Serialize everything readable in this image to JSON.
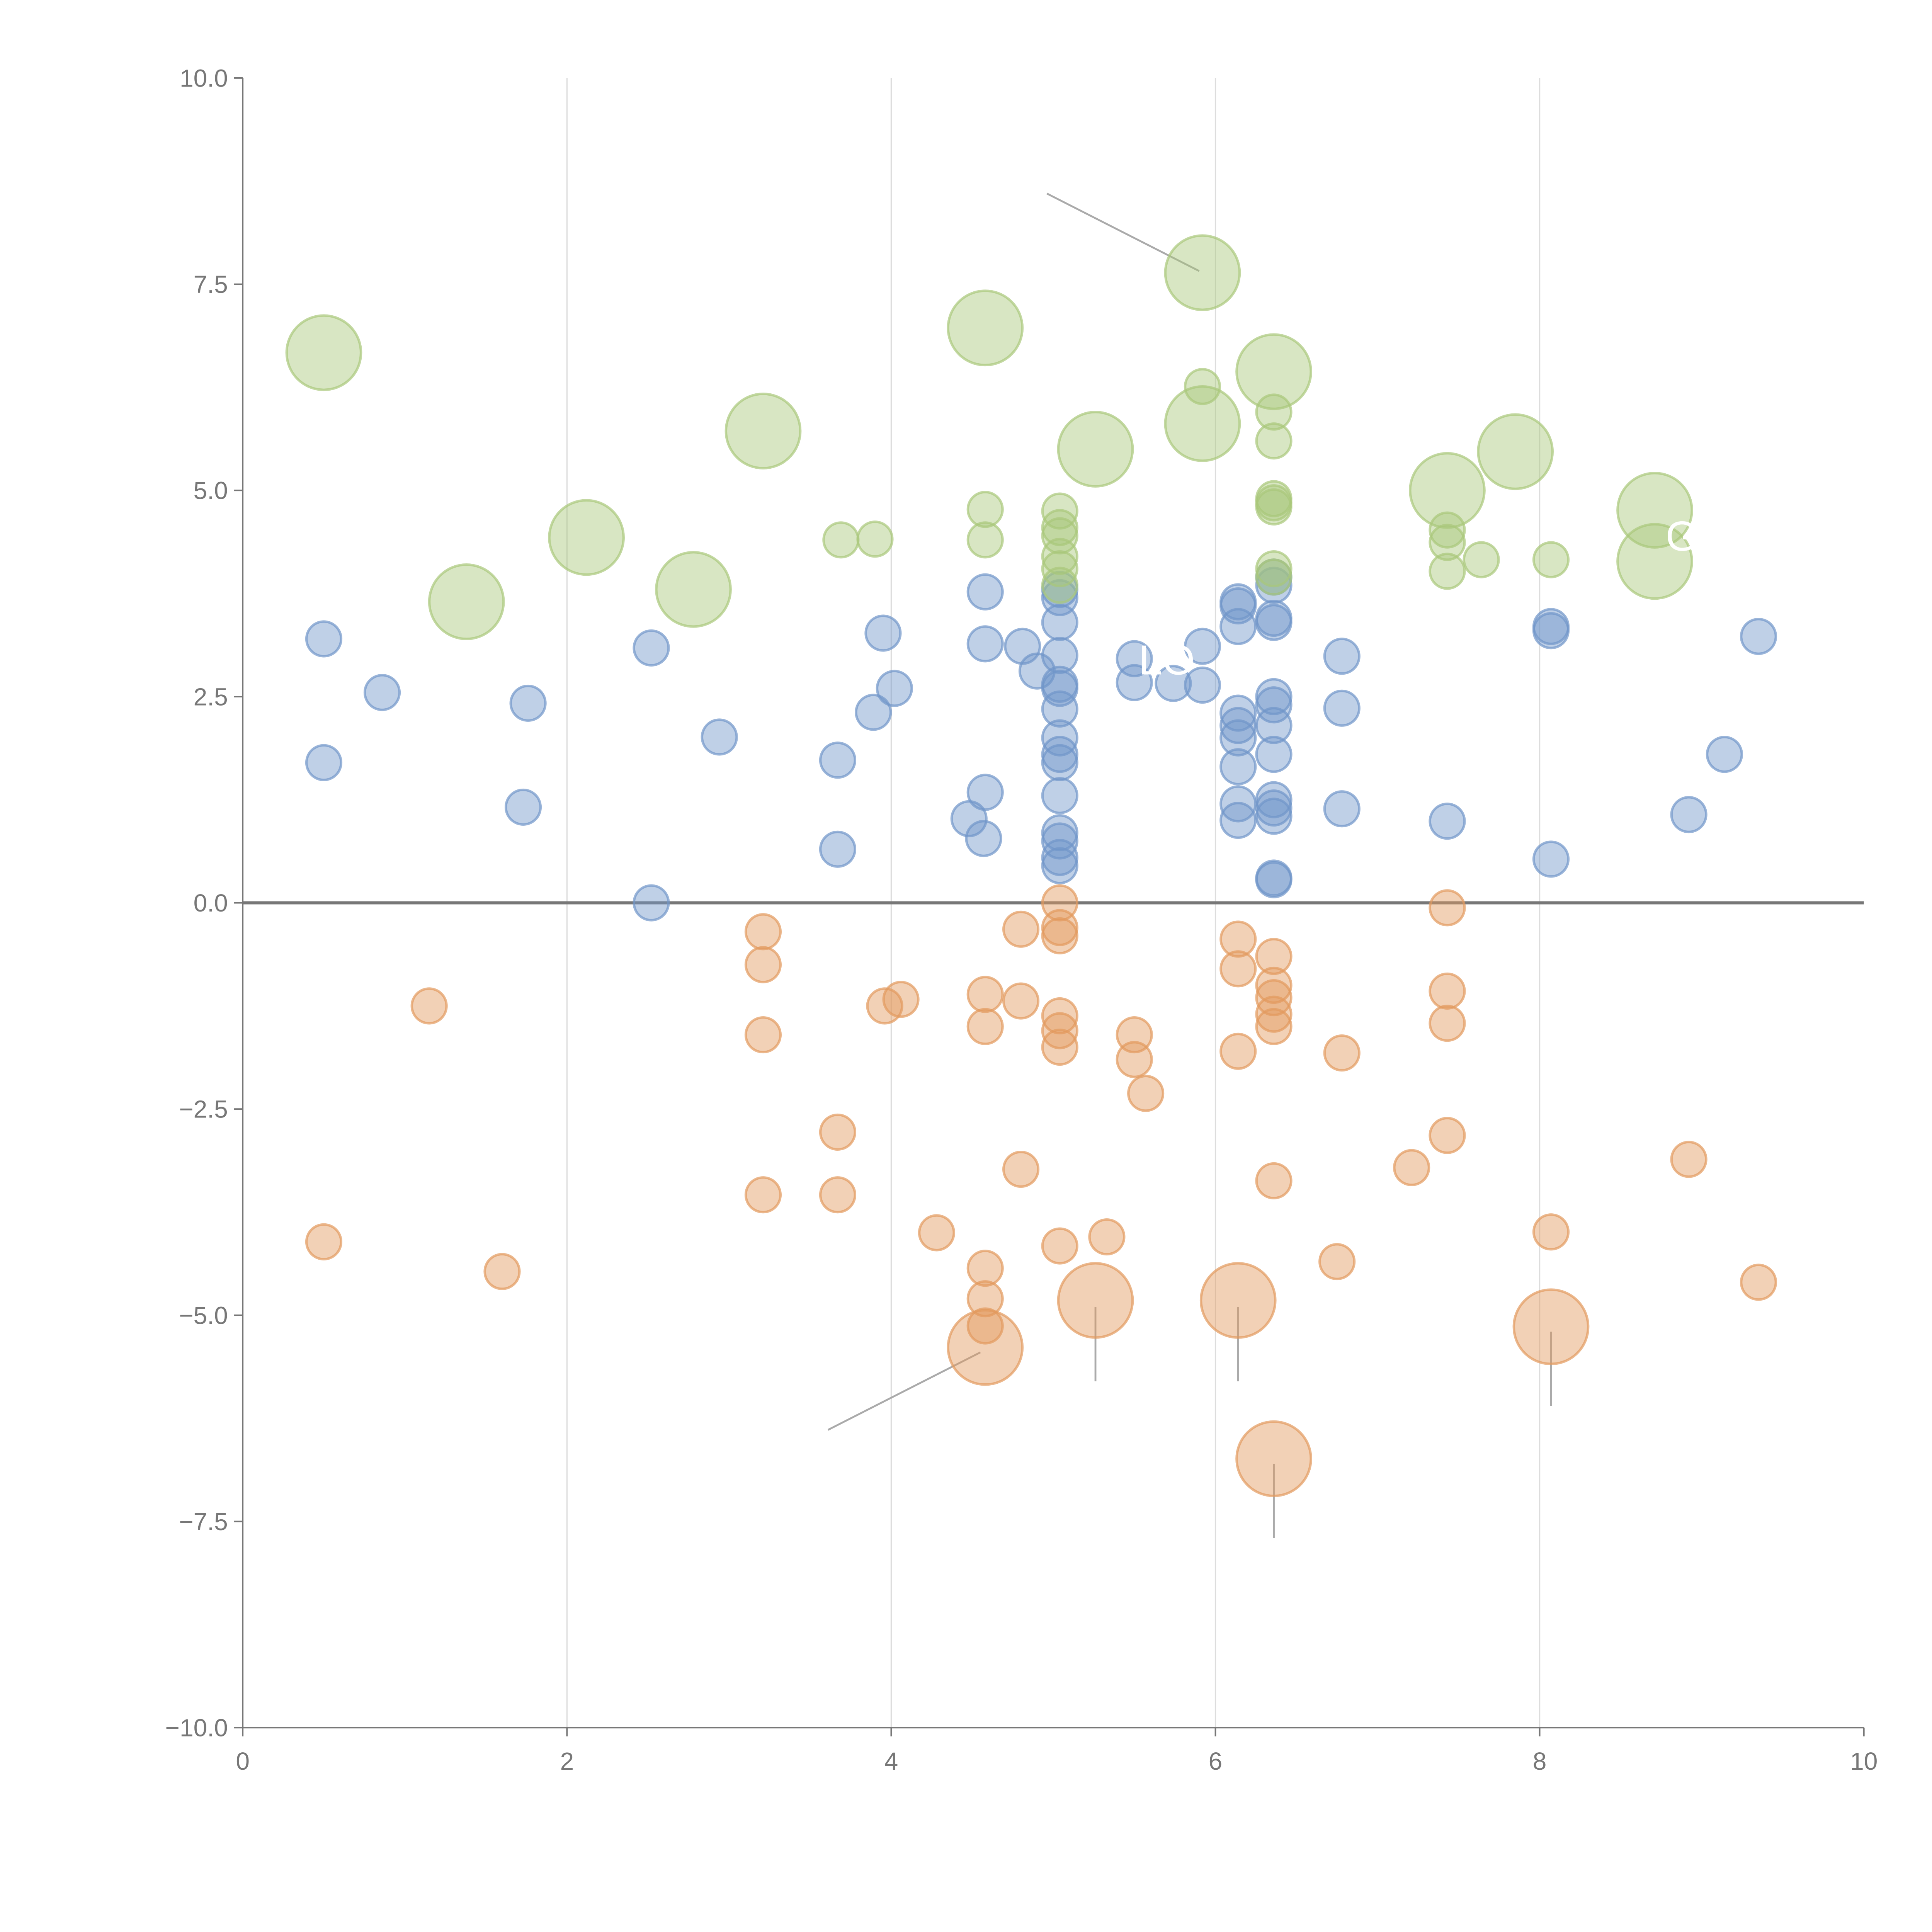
{
  "chart_data": {
    "type": "scatter",
    "title": "",
    "xlabel": "",
    "ylabel": "",
    "xlim": [
      0,
      10
    ],
    "ylim": [
      -10,
      10
    ],
    "grid": "vertical",
    "x_ticks": [
      "0",
      "2",
      "4",
      "6",
      "8",
      "10"
    ],
    "y_ticks": [
      "10.0",
      "7.5",
      "5.0",
      "2.5",
      "0.0",
      "−2.5",
      "−5.0",
      "−7.5",
      "−10.0"
    ],
    "series": [
      {
        "name": "blue",
        "color": "#7196c9",
        "points": [
          [
            0.5,
            3.2,
            1
          ],
          [
            0.5,
            1.7,
            1
          ],
          [
            0.86,
            2.55,
            1
          ],
          [
            1.73,
            1.16,
            1
          ],
          [
            1.76,
            2.42,
            1
          ],
          [
            2.52,
            3.09,
            1
          ],
          [
            2.52,
            0,
            1
          ],
          [
            2.94,
            2.01,
            1
          ],
          [
            3.67,
            1.73,
            1
          ],
          [
            3.67,
            0.65,
            1
          ],
          [
            3.89,
            2.31,
            1
          ],
          [
            3.95,
            3.27,
            1
          ],
          [
            4.02,
            2.6,
            1
          ],
          [
            4.48,
            1.02,
            1
          ],
          [
            4.58,
            3.77,
            1
          ],
          [
            4.58,
            3.14,
            1
          ],
          [
            4.58,
            1.34,
            1
          ],
          [
            4.57,
            0.78,
            1
          ],
          [
            4.81,
            3.11,
            1
          ],
          [
            4.9,
            2.81,
            1
          ],
          [
            5.04,
            3.8,
            1
          ],
          [
            5.04,
            3.7,
            1
          ],
          [
            5.04,
            3.4,
            1
          ],
          [
            5.04,
            3.0,
            1
          ],
          [
            5.04,
            2.65,
            1
          ],
          [
            5.04,
            2.6,
            1
          ],
          [
            5.04,
            2.35,
            1
          ],
          [
            5.04,
            2.0,
            1
          ],
          [
            5.04,
            1.8,
            1
          ],
          [
            5.04,
            1.7,
            1
          ],
          [
            5.04,
            1.3,
            1
          ],
          [
            5.04,
            0.85,
            1
          ],
          [
            5.04,
            0.75,
            1
          ],
          [
            5.04,
            0.55,
            1
          ],
          [
            5.04,
            0.45,
            1
          ],
          [
            5.5,
            2.96,
            1
          ],
          [
            5.5,
            2.67,
            1
          ],
          [
            5.74,
            2.66,
            1
          ],
          [
            5.92,
            3.11,
            1
          ],
          [
            5.92,
            2.64,
            1
          ],
          [
            6.14,
            3.65,
            1
          ],
          [
            6.14,
            3.6,
            1
          ],
          [
            6.14,
            3.35,
            1
          ],
          [
            6.14,
            2.3,
            1
          ],
          [
            6.14,
            2.15,
            1
          ],
          [
            6.14,
            2.0,
            1
          ],
          [
            6.14,
            1.65,
            1
          ],
          [
            6.14,
            1.2,
            1
          ],
          [
            6.14,
            1.0,
            1
          ],
          [
            6.36,
            3.95,
            1
          ],
          [
            6.36,
            3.85,
            1
          ],
          [
            6.36,
            3.45,
            1
          ],
          [
            6.36,
            3.4,
            1
          ],
          [
            6.36,
            2.5,
            1
          ],
          [
            6.36,
            2.4,
            1
          ],
          [
            6.36,
            2.15,
            1
          ],
          [
            6.36,
            1.8,
            1
          ],
          [
            6.36,
            1.25,
            1
          ],
          [
            6.36,
            1.15,
            1
          ],
          [
            6.36,
            1.05,
            1
          ],
          [
            6.36,
            0.3,
            1
          ],
          [
            6.36,
            0.28,
            1
          ],
          [
            6.78,
            2.99,
            1
          ],
          [
            6.78,
            2.36,
            1
          ],
          [
            6.78,
            1.14,
            1
          ],
          [
            7.43,
            0.99,
            1
          ],
          [
            8.07,
            3.35,
            1
          ],
          [
            8.07,
            3.3,
            1
          ],
          [
            8.07,
            0.53,
            1
          ],
          [
            8.92,
            1.07,
            1
          ],
          [
            9.14,
            1.8,
            1
          ],
          [
            9.35,
            3.23,
            1
          ]
        ]
      },
      {
        "name": "orange",
        "color": "#e39a5e",
        "points": [
          [
            0.5,
            -4.11,
            1
          ],
          [
            1.15,
            -1.25,
            1
          ],
          [
            1.6,
            -4.47,
            1
          ],
          [
            3.21,
            -0.35,
            1
          ],
          [
            3.21,
            -0.75,
            1
          ],
          [
            3.21,
            -1.6,
            1
          ],
          [
            3.21,
            -3.54,
            1
          ],
          [
            3.67,
            -2.78,
            1
          ],
          [
            3.67,
            -3.54,
            1
          ],
          [
            3.96,
            -1.25,
            1
          ],
          [
            4.06,
            -1.17,
            1
          ],
          [
            4.28,
            -4.0,
            1
          ],
          [
            4.58,
            -1.11,
            1
          ],
          [
            4.58,
            -1.5,
            1
          ],
          [
            4.58,
            -4.43,
            1
          ],
          [
            4.58,
            -4.8,
            1
          ],
          [
            4.58,
            -5.13,
            1
          ],
          [
            4.58,
            -5.39,
            4
          ],
          [
            4.8,
            -0.32,
            1
          ],
          [
            4.8,
            -1.19,
            1
          ],
          [
            4.8,
            -3.23,
            1
          ],
          [
            5.04,
            0.0,
            1
          ],
          [
            5.04,
            -0.3,
            1
          ],
          [
            5.04,
            -0.4,
            1
          ],
          [
            5.04,
            -1.37,
            1
          ],
          [
            5.04,
            -1.55,
            1
          ],
          [
            5.04,
            -1.75,
            1
          ],
          [
            5.04,
            -4.16,
            1
          ],
          [
            5.33,
            -4.05,
            1
          ],
          [
            5.26,
            -4.82,
            4
          ],
          [
            5.5,
            -1.6,
            1
          ],
          [
            5.5,
            -1.9,
            1
          ],
          [
            5.57,
            -2.31,
            1
          ],
          [
            6.14,
            -0.44,
            1
          ],
          [
            6.14,
            -0.8,
            1
          ],
          [
            6.14,
            -1.8,
            1
          ],
          [
            6.14,
            -4.82,
            4
          ],
          [
            6.36,
            -0.65,
            1
          ],
          [
            6.36,
            -1.0,
            1
          ],
          [
            6.36,
            -1.15,
            1
          ],
          [
            6.36,
            -1.35,
            1
          ],
          [
            6.36,
            -1.5,
            1
          ],
          [
            6.36,
            -3.37,
            1
          ],
          [
            6.36,
            -6.74,
            4
          ],
          [
            6.78,
            -1.82,
            1
          ],
          [
            6.75,
            -4.35,
            1
          ],
          [
            7.21,
            -3.21,
            1
          ],
          [
            7.43,
            -0.06,
            1
          ],
          [
            7.43,
            -1.07,
            1
          ],
          [
            7.43,
            -1.46,
            1
          ],
          [
            7.43,
            -2.82,
            1
          ],
          [
            8.07,
            -3.99,
            1
          ],
          [
            8.07,
            -5.14,
            4
          ],
          [
            8.92,
            -3.11,
            1
          ],
          [
            9.35,
            -4.6,
            1
          ]
        ]
      },
      {
        "name": "green",
        "color": "#a9c77a",
        "points": [
          [
            0.5,
            6.67,
            4
          ],
          [
            1.38,
            3.65,
            4
          ],
          [
            2.12,
            4.43,
            4
          ],
          [
            2.78,
            3.8,
            4
          ],
          [
            3.21,
            5.72,
            4
          ],
          [
            4.58,
            6.97,
            4
          ],
          [
            5.26,
            5.5,
            4
          ],
          [
            5.92,
            7.64,
            4
          ],
          [
            5.92,
            5.81,
            4
          ],
          [
            6.36,
            6.44,
            4
          ],
          [
            7.43,
            5.0,
            4
          ],
          [
            7.85,
            5.47,
            4
          ],
          [
            8.71,
            4.76,
            4
          ],
          [
            8.71,
            4.14,
            4
          ],
          [
            3.69,
            4.4,
            1
          ],
          [
            3.9,
            4.41,
            1
          ],
          [
            4.58,
            4.77,
            1
          ],
          [
            4.58,
            4.4,
            1
          ],
          [
            5.04,
            4.75,
            1
          ],
          [
            5.04,
            4.55,
            1
          ],
          [
            5.04,
            4.45,
            1
          ],
          [
            5.04,
            4.2,
            1
          ],
          [
            5.04,
            4.05,
            1
          ],
          [
            5.04,
            3.85,
            1
          ],
          [
            5.92,
            6.26,
            1
          ],
          [
            6.36,
            5.95,
            1
          ],
          [
            6.36,
            5.6,
            1
          ],
          [
            6.36,
            4.9,
            1
          ],
          [
            6.36,
            4.85,
            1
          ],
          [
            6.36,
            4.8,
            1
          ],
          [
            6.36,
            4.05,
            1
          ],
          [
            6.36,
            3.95,
            1
          ],
          [
            7.43,
            4.52,
            1
          ],
          [
            7.43,
            4.37,
            1
          ],
          [
            7.43,
            4.02,
            1
          ],
          [
            7.64,
            4.16,
            1
          ],
          [
            8.07,
            4.16,
            1
          ]
        ]
      }
    ],
    "annotations": [
      {
        "text": "LO",
        "x": 5.7,
        "y": 2.95
      },
      {
        "text": "GL",
        "x": 8.95,
        "y": 4.45
      }
    ],
    "leader_lines": [
      [
        [
          4.96,
          8.6
        ],
        [
          5.9,
          7.66
        ]
      ],
      [
        [
          3.61,
          -6.39
        ],
        [
          4.55,
          -5.45
        ]
      ],
      [
        [
          5.26,
          -4.9
        ],
        [
          5.26,
          -5.8
        ]
      ],
      [
        [
          6.14,
          -4.9
        ],
        [
          6.14,
          -5.8
        ]
      ],
      [
        [
          6.36,
          -6.8
        ],
        [
          6.36,
          -7.7
        ]
      ],
      [
        [
          8.07,
          -5.2
        ],
        [
          8.07,
          -6.1
        ]
      ]
    ]
  }
}
